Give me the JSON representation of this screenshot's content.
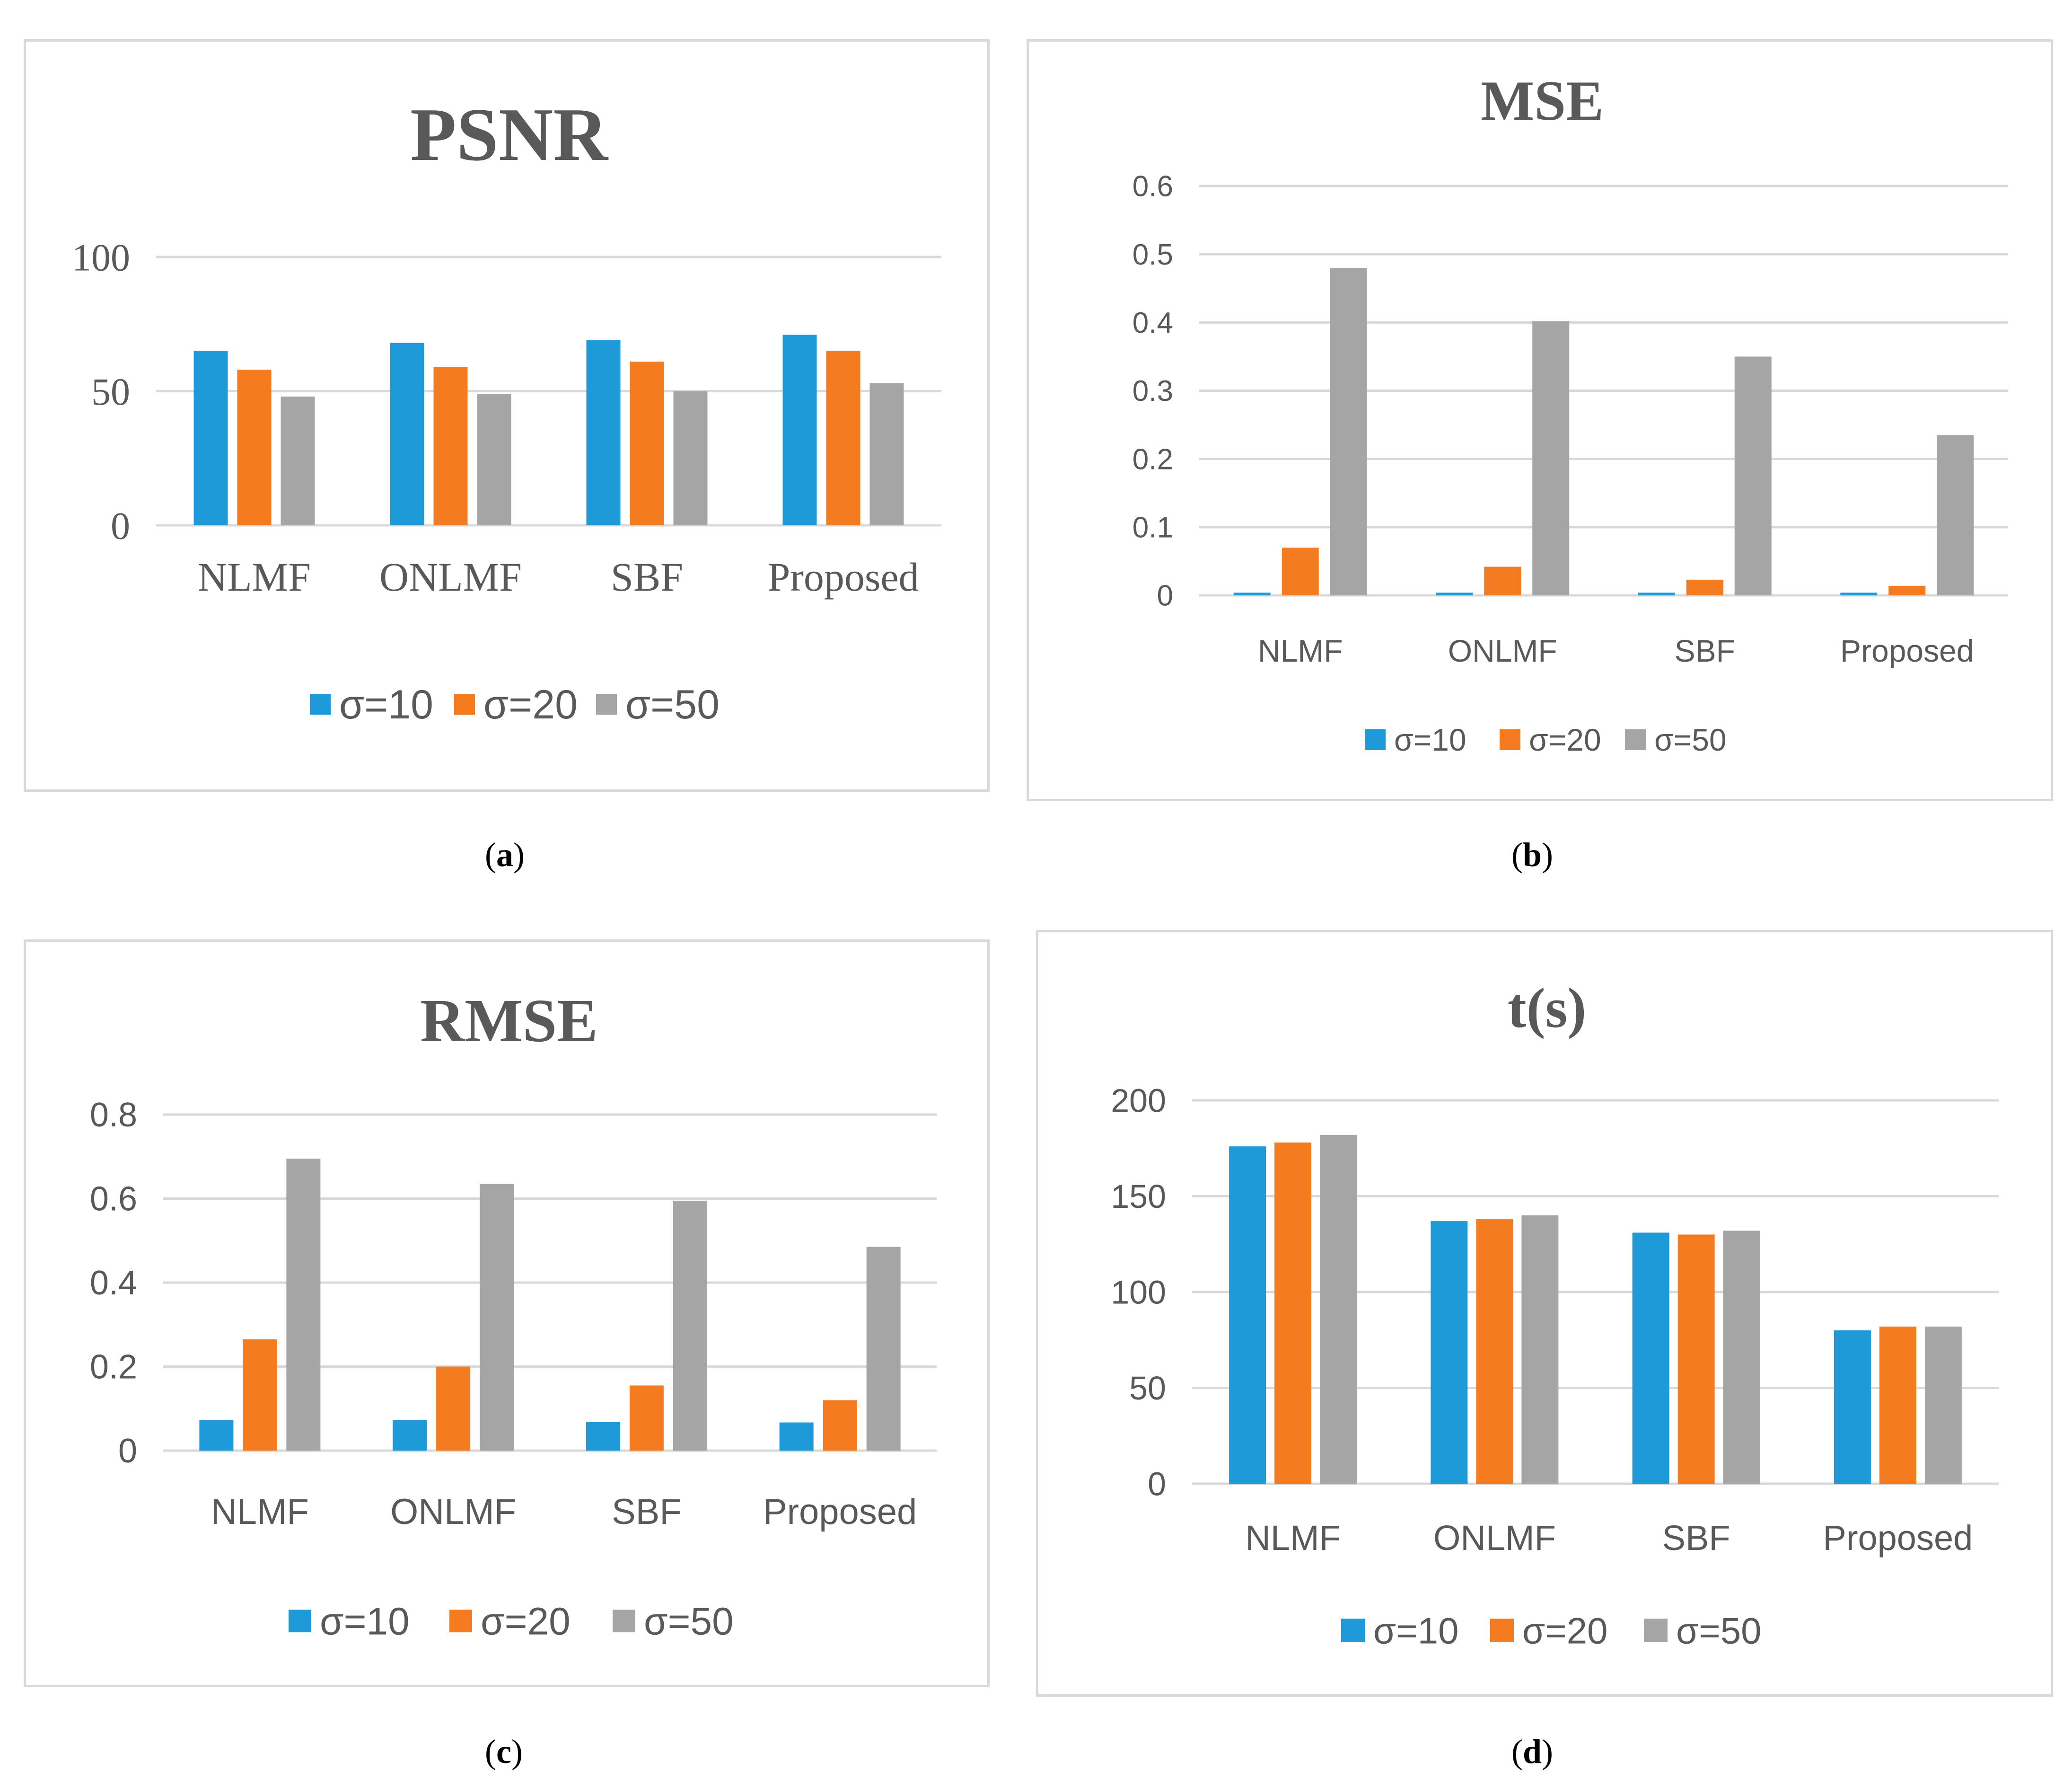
{
  "colors": {
    "s10": "#1f9ad8",
    "s20": "#f47b20",
    "s50": "#a5a5a5",
    "grid": "#d9d9d9",
    "text": "#595959"
  },
  "captions": {
    "a": "a",
    "b": "b",
    "c": "c",
    "d": "d"
  },
  "chart_data": [
    {
      "id": "a",
      "type": "bar",
      "title": "PSNR",
      "categories": [
        "NLMF",
        "ONLMF",
        "SBF",
        "Proposed"
      ],
      "series": [
        {
          "name": "σ=10",
          "values": [
            65,
            68,
            69,
            71
          ]
        },
        {
          "name": "σ=20",
          "values": [
            58,
            59,
            61,
            65
          ]
        },
        {
          "name": "σ=50",
          "values": [
            48,
            49,
            50,
            53
          ]
        }
      ],
      "yticks": [
        "0",
        "50",
        "100"
      ],
      "ylim": [
        0,
        100
      ],
      "legend": "bottom",
      "xlabel": "",
      "ylabel": ""
    },
    {
      "id": "b",
      "type": "bar",
      "title": "MSE",
      "categories": [
        "NLMF",
        "ONLMF",
        "SBF",
        "Proposed"
      ],
      "series": [
        {
          "name": "σ=10",
          "values": [
            0.004,
            0.004,
            0.004,
            0.004
          ]
        },
        {
          "name": "σ=20",
          "values": [
            0.07,
            0.042,
            0.023,
            0.014
          ]
        },
        {
          "name": "σ=50",
          "values": [
            0.48,
            0.402,
            0.35,
            0.235
          ]
        }
      ],
      "yticks": [
        "0",
        "0.1",
        "0.2",
        "0.3",
        "0.4",
        "0.5",
        "0.6"
      ],
      "ylim": [
        0,
        0.6
      ],
      "legend": "bottom",
      "xlabel": "",
      "ylabel": ""
    },
    {
      "id": "c",
      "type": "bar",
      "title": "RMSE",
      "categories": [
        "NLMF",
        "ONLMF",
        "SBF",
        "Proposed"
      ],
      "series": [
        {
          "name": "σ=10",
          "values": [
            0.073,
            0.073,
            0.068,
            0.067
          ]
        },
        {
          "name": "σ=20",
          "values": [
            0.265,
            0.2,
            0.155,
            0.12
          ]
        },
        {
          "name": "σ=50",
          "values": [
            0.695,
            0.635,
            0.595,
            0.485
          ]
        }
      ],
      "yticks": [
        "0",
        "0.2",
        "0.4",
        "0.6",
        "0.8"
      ],
      "ylim": [
        0,
        0.8
      ],
      "legend": "bottom",
      "xlabel": "",
      "ylabel": ""
    },
    {
      "id": "d",
      "type": "bar",
      "title": "t(s)",
      "categories": [
        "NLMF",
        "ONLMF",
        "SBF",
        "Proposed"
      ],
      "series": [
        {
          "name": "σ=10",
          "values": [
            176,
            137,
            131,
            80
          ]
        },
        {
          "name": "σ=20",
          "values": [
            178,
            138,
            130,
            82
          ]
        },
        {
          "name": "σ=50",
          "values": [
            182,
            140,
            132,
            82
          ]
        }
      ],
      "yticks": [
        "0",
        "50",
        "100",
        "150",
        "200"
      ],
      "ylim": [
        0,
        200
      ],
      "legend": "bottom",
      "xlabel": "",
      "ylabel": ""
    }
  ]
}
